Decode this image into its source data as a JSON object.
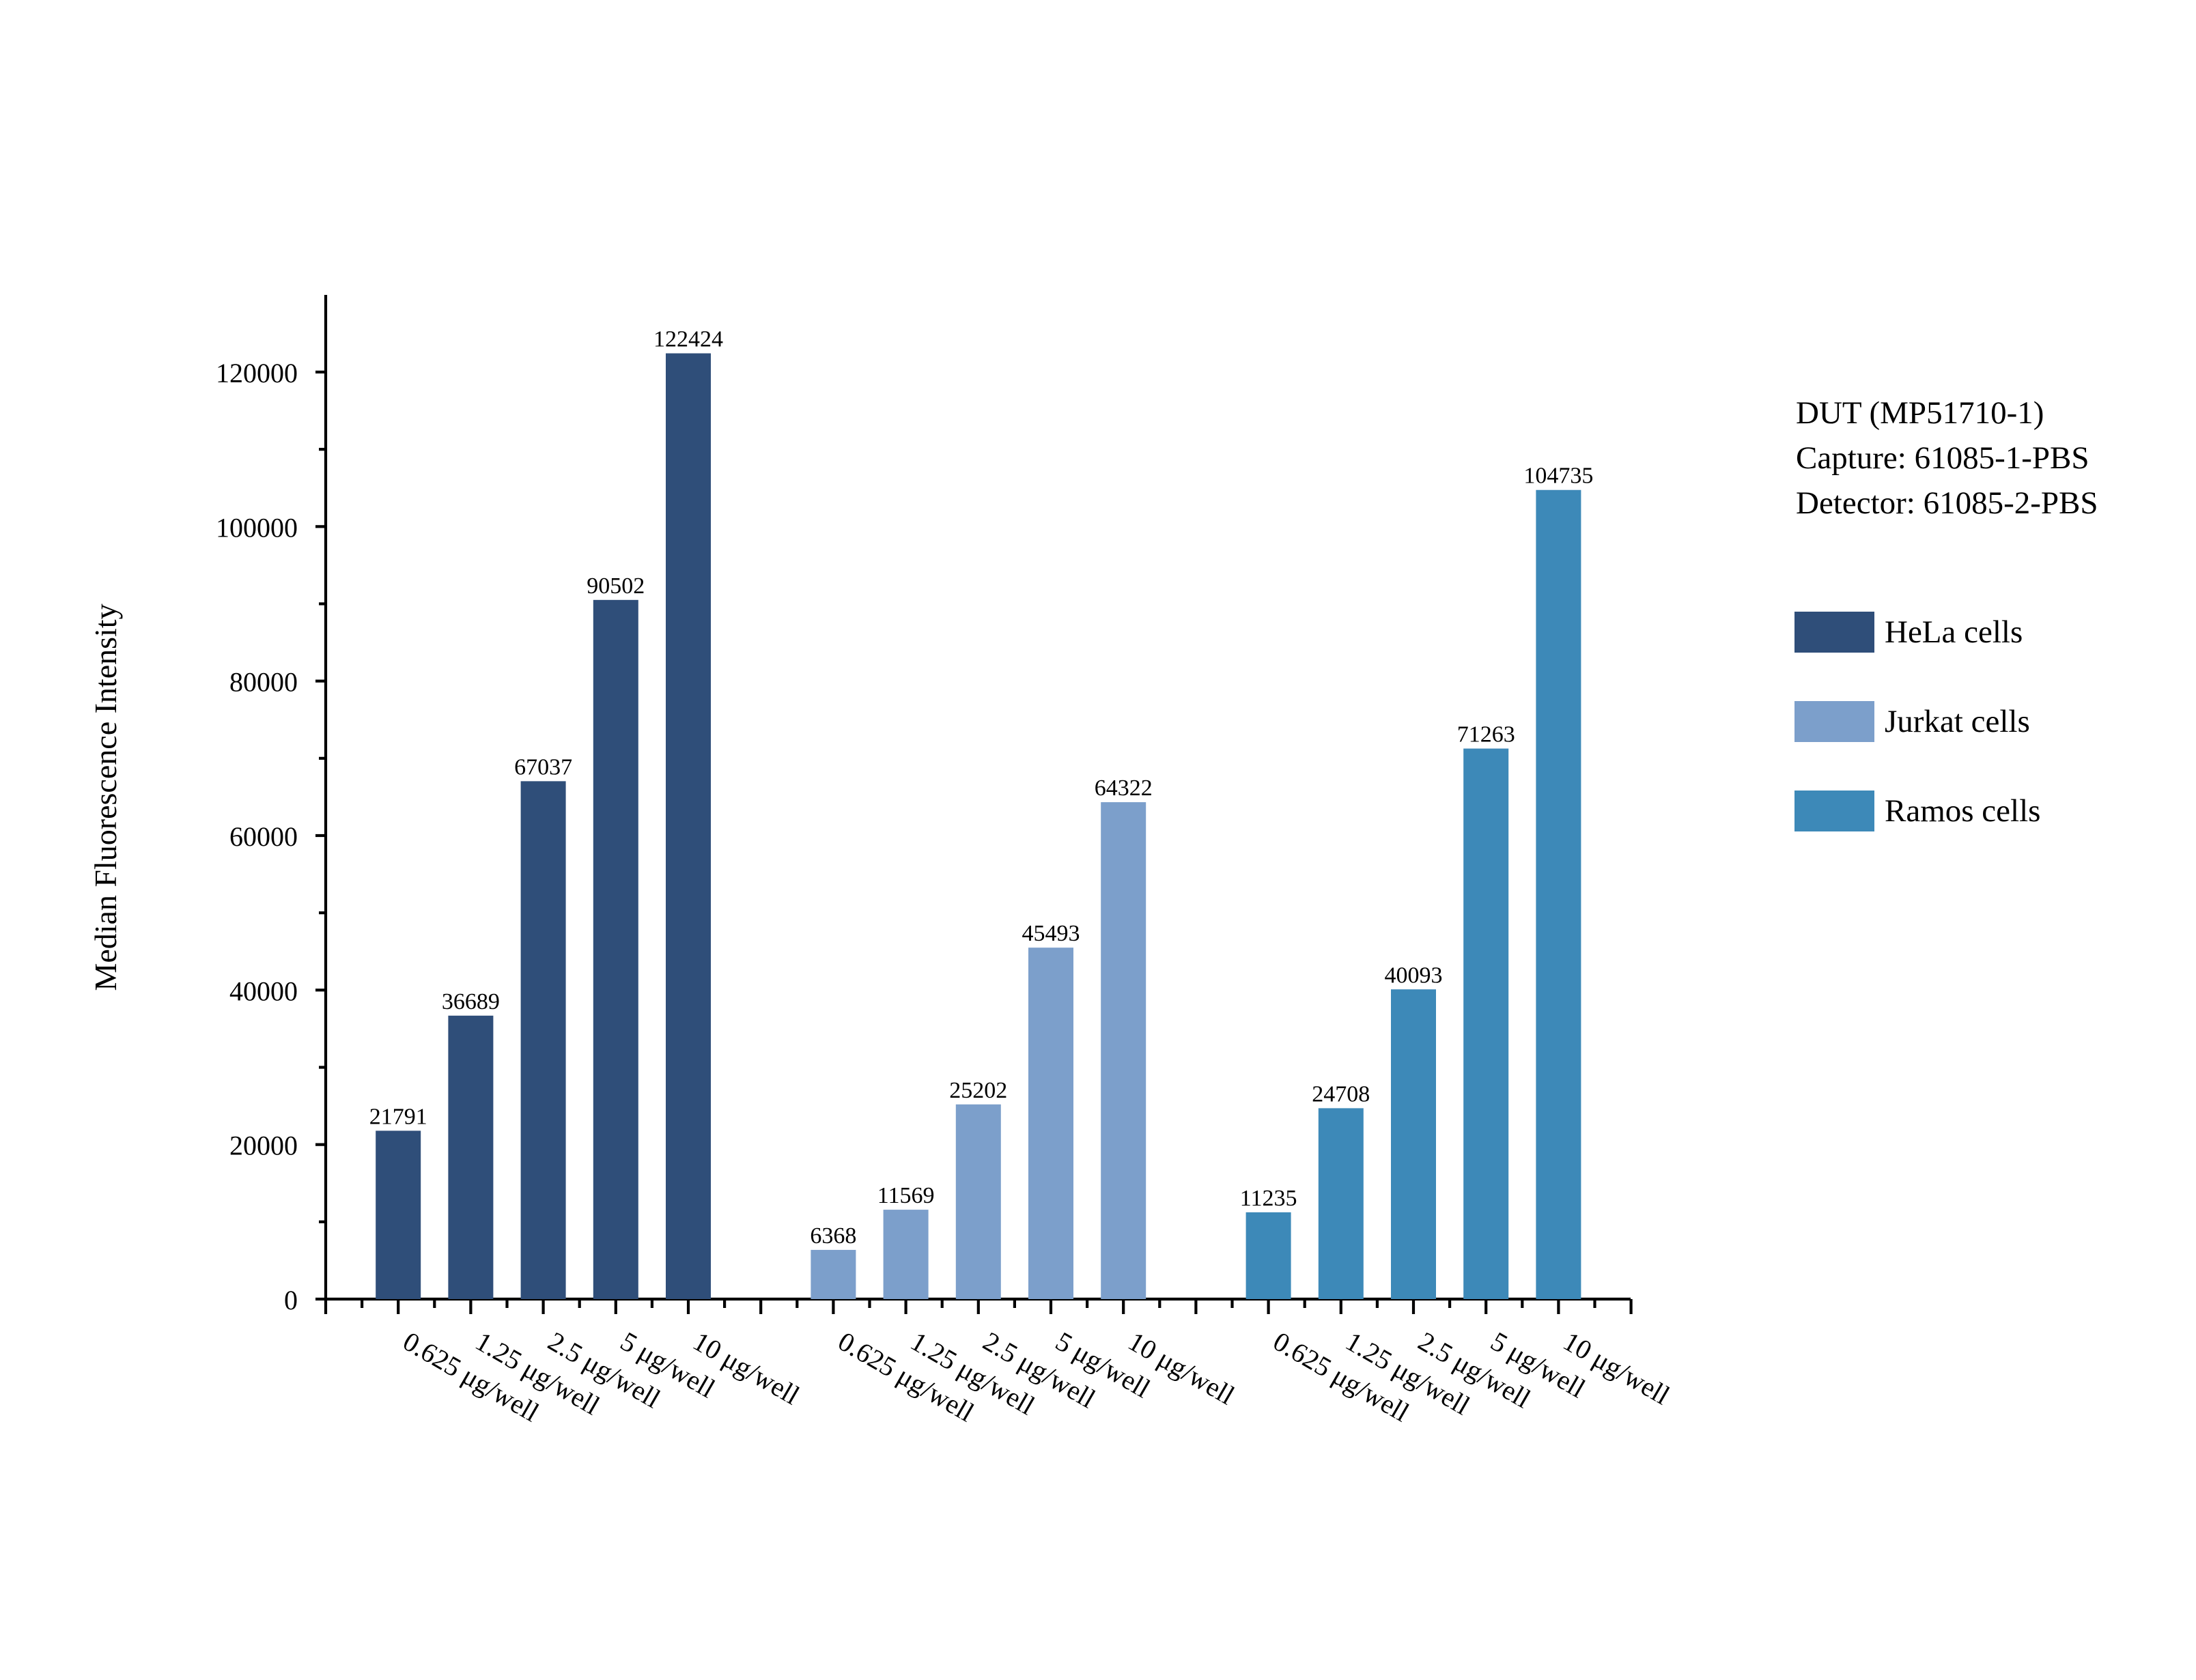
{
  "chart_data": {
    "type": "bar",
    "ylabel": "Median Fluorescence Intensity",
    "xlabel": "",
    "ylim": [
      0,
      130000
    ],
    "yticks": [
      0,
      20000,
      40000,
      60000,
      80000,
      100000,
      120000
    ],
    "yticks_label": [
      "0",
      "20000",
      "40000",
      "60000",
      "80000",
      "100000",
      "120000"
    ],
    "categories": [
      "0.625 μg/well",
      "1.25 μg/well",
      "2.5 μg/well",
      "5 μg/well",
      "10 μg/well"
    ],
    "grid": false,
    "legend_position": "right",
    "series": [
      {
        "name": "HeLa cells",
        "color": "#2f4e79",
        "values": [
          21791,
          36689,
          67037,
          90502,
          122424
        ]
      },
      {
        "name": "Jurkat cells",
        "color": "#7c9fcb",
        "values": [
          6368,
          11569,
          25202,
          45493,
          64322
        ]
      },
      {
        "name": "Ramos cells",
        "color": "#3d89b8",
        "values": [
          11235,
          24708,
          40093,
          71263,
          104735
        ]
      }
    ],
    "value_labels": [
      [
        "21791",
        "36689",
        "67037",
        "90502",
        "122424"
      ],
      [
        "6368",
        "11569",
        "25202",
        "45493",
        "64322"
      ],
      [
        "11235",
        "24708",
        "40093",
        "71263",
        "104735"
      ]
    ],
    "annotation_lines": [
      "DUT (MP51710-1)",
      "Capture: 61085-1-PBS",
      "Detector: 61085-2-PBS"
    ]
  }
}
